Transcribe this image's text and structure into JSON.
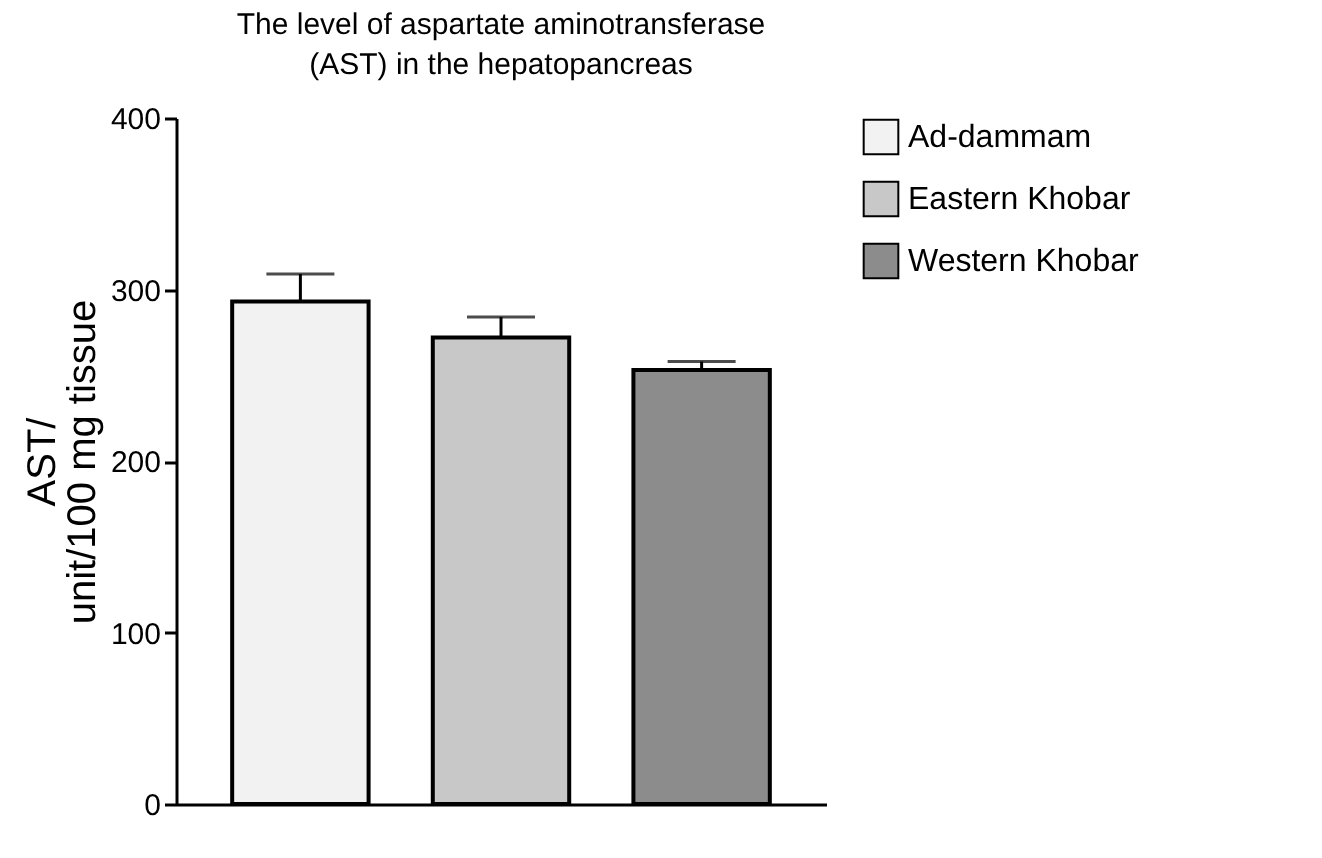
{
  "chart_data": {
    "type": "bar",
    "title": "The level of aspartate aminotransferase\n(AST) in the hepatopancreas",
    "ylabel": "AST/\nunit/100 mg tissue",
    "categories": [
      null
    ],
    "series": [
      {
        "name": "Ad-dammam",
        "color": "#f2f2f2",
        "values": [
          293
        ],
        "errors": [
          16
        ]
      },
      {
        "name": "Eastern Khobar",
        "color": "#c8c8c8",
        "values": [
          272
        ],
        "errors": [
          12
        ]
      },
      {
        "name": "Western Khobar",
        "color": "#8c8c8c",
        "values": [
          253
        ],
        "errors": [
          5
        ]
      }
    ],
    "ylim": [
      0,
      400
    ],
    "yticks": [
      0,
      100,
      200,
      300,
      400
    ],
    "legend": "top right"
  }
}
